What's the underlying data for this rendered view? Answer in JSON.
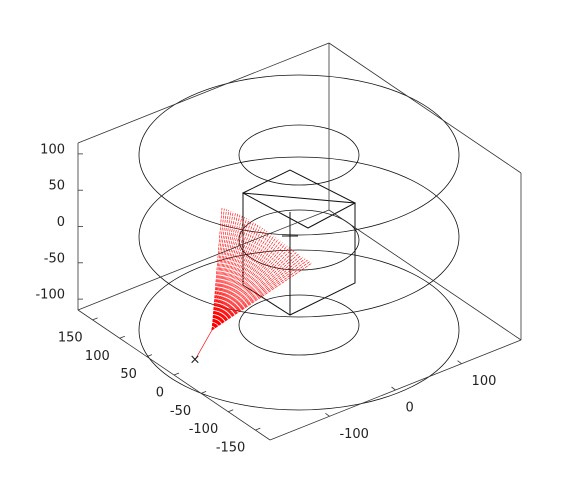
{
  "chart_data": {
    "type": "line3d",
    "xlim": [
      -177,
      177
    ],
    "xticks": [
      -150,
      -100,
      -50,
      0,
      50,
      100,
      150
    ],
    "ylim": [
      -190,
      190
    ],
    "yticks": [
      -100,
      0,
      100
    ],
    "zlim": [
      -115,
      115
    ],
    "zticks": [
      -100,
      -50,
      0,
      50,
      100
    ],
    "color": "#ff0000"
  }
}
